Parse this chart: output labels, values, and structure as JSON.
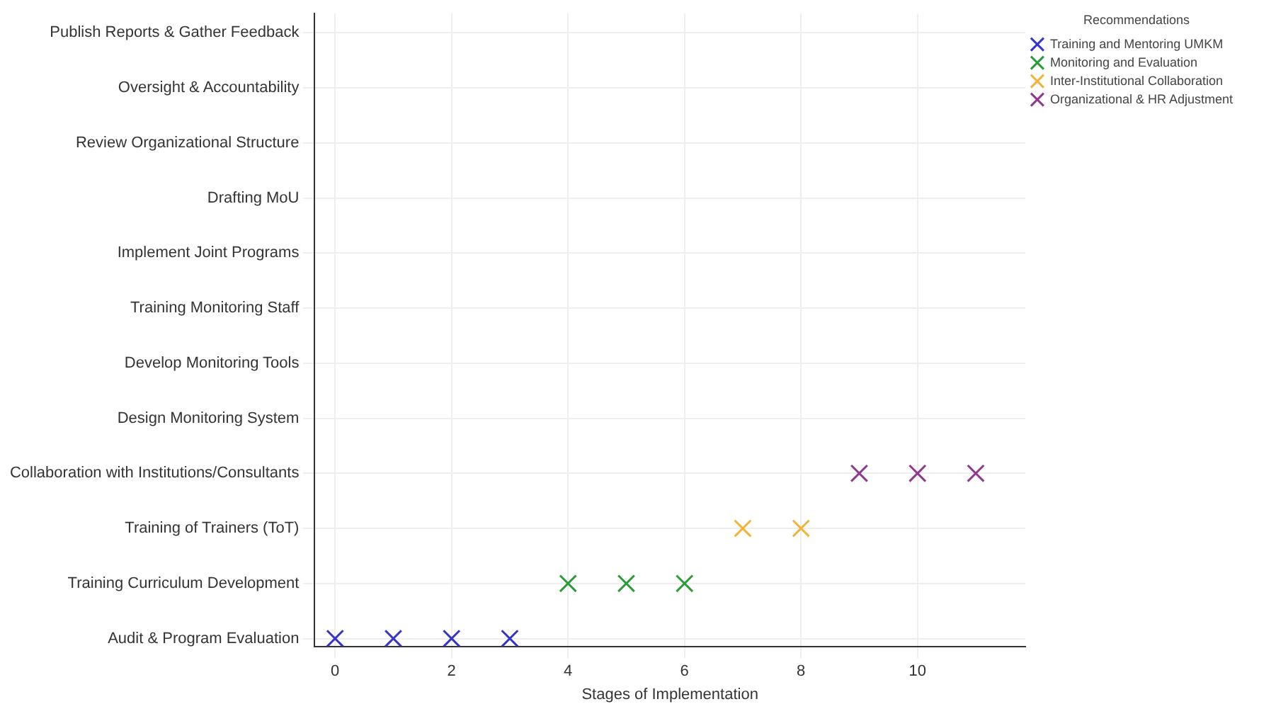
{
  "chart_data": {
    "type": "scatter",
    "orientation": "horizontal",
    "xlabel": "Stages of Implementation",
    "legend_title": "Recommendations",
    "categories": [
      "Publish Reports & Gather Feedback",
      "Oversight & Accountability",
      "Review Organizational Structure",
      "Drafting MoU",
      "Implement Joint Programs",
      "Training Monitoring Staff",
      "Develop Monitoring Tools",
      "Design Monitoring System",
      "Collaboration with Institutions/Consultants",
      "Training of Trainers (ToT)",
      "Training Curriculum Development",
      "Audit & Program Evaluation"
    ],
    "xlim": [
      -0.35,
      11.85
    ],
    "xticks": [
      0,
      2,
      4,
      6,
      8,
      10
    ],
    "grid": true,
    "legend": "top right",
    "marker": "cross",
    "series": [
      {
        "name": "Training and Mentoring UMKM",
        "color": "#3535c8",
        "values": [
          null,
          null,
          null,
          null,
          null,
          null,
          null,
          null,
          null,
          null,
          null,
          0
        ]
      },
      {
        "color": "#3535c8",
        "values": [
          null,
          null,
          null,
          null,
          null,
          null,
          null,
          null,
          null,
          null,
          null,
          1
        ]
      },
      {
        "color": "#3535c8",
        "values": [
          null,
          null,
          null,
          null,
          null,
          null,
          null,
          null,
          null,
          null,
          null,
          2
        ]
      },
      {
        "color": "#3535c8",
        "values": [
          null,
          null,
          null,
          null,
          null,
          null,
          null,
          null,
          null,
          null,
          null,
          3
        ]
      },
      {
        "name": "Monitoring and Evaluation",
        "color": "#2e9a3a",
        "values": [
          null,
          null,
          null,
          null,
          null,
          null,
          null,
          null,
          null,
          null,
          4,
          null
        ]
      },
      {
        "color": "#2e9a3a",
        "values": [
          null,
          null,
          null,
          null,
          null,
          null,
          null,
          null,
          null,
          null,
          5,
          null
        ]
      },
      {
        "color": "#2e9a3a",
        "values": [
          null,
          null,
          null,
          null,
          null,
          null,
          null,
          null,
          null,
          null,
          6,
          null
        ]
      },
      {
        "name": "Inter-Institutional Collaboration",
        "color": "#f0b43a",
        "values": [
          null,
          null,
          null,
          null,
          null,
          null,
          null,
          null,
          null,
          7,
          null,
          null
        ]
      },
      {
        "color": "#f0b43a",
        "values": [
          null,
          null,
          null,
          null,
          null,
          null,
          null,
          null,
          null,
          8,
          null,
          null
        ]
      },
      {
        "name": "Organizational & HR Adjustment",
        "color": "#8e3a8e",
        "values": [
          null,
          null,
          null,
          null,
          null,
          null,
          null,
          null,
          9,
          null,
          null,
          null
        ]
      },
      {
        "color": "#8e3a8e",
        "values": [
          null,
          null,
          null,
          null,
          null,
          null,
          null,
          null,
          10,
          null,
          null,
          null
        ]
      },
      {
        "color": "#8e3a8e",
        "values": [
          null,
          null,
          null,
          null,
          null,
          null,
          null,
          null,
          11,
          null,
          null,
          null
        ]
      }
    ]
  }
}
